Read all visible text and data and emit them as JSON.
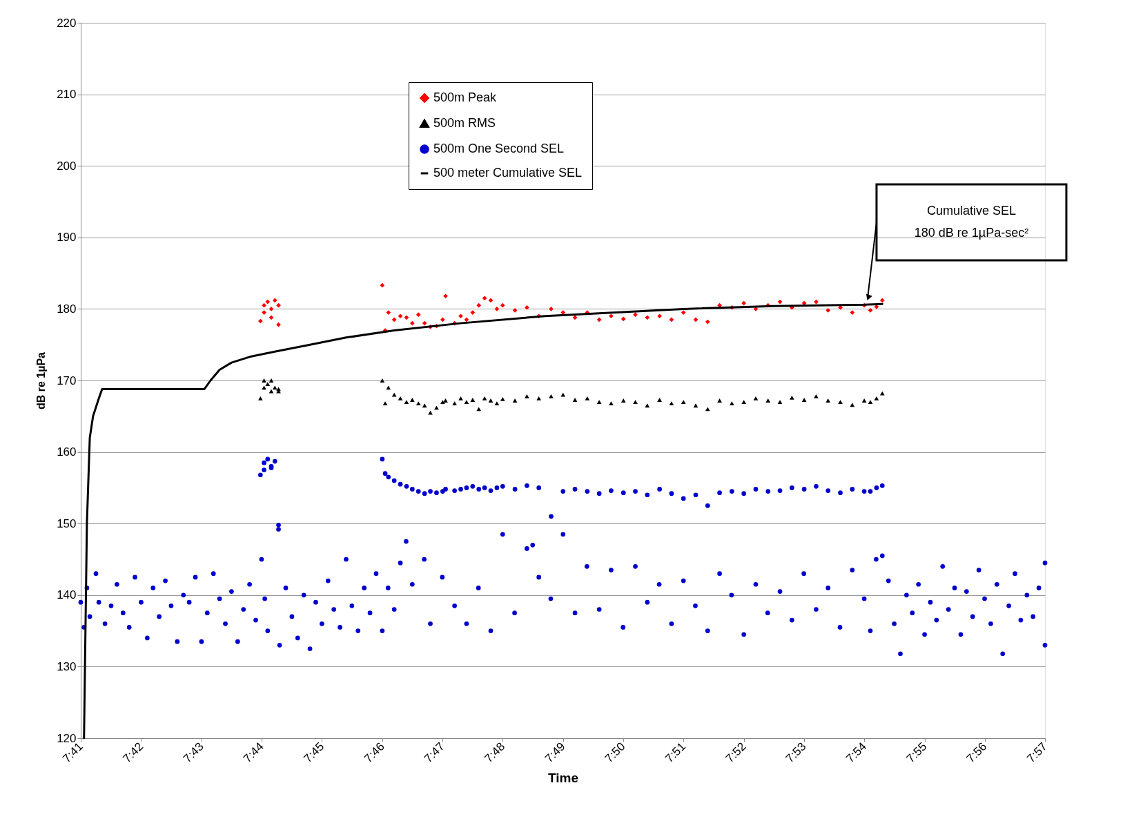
{
  "chart_data": {
    "type": "scatter",
    "xlabel": "Time",
    "ylabel": "dB re 1µPa",
    "xlim": [
      7.6833,
      7.95
    ],
    "ylim": [
      120,
      220
    ],
    "xticks": [
      {
        "value": 7.6833,
        "label": "7:41"
      },
      {
        "value": 7.7,
        "label": "7:42"
      },
      {
        "value": 7.7167,
        "label": "7:43"
      },
      {
        "value": 7.7333,
        "label": "7:44"
      },
      {
        "value": 7.75,
        "label": "7:45"
      },
      {
        "value": 7.7667,
        "label": "7:46"
      },
      {
        "value": 7.7833,
        "label": "7:47"
      },
      {
        "value": 7.8,
        "label": "7:48"
      },
      {
        "value": 7.8167,
        "label": "7:49"
      },
      {
        "value": 7.8333,
        "label": "7:50"
      },
      {
        "value": 7.85,
        "label": "7:51"
      },
      {
        "value": 7.8667,
        "label": "7:52"
      },
      {
        "value": 7.8833,
        "label": "7:53"
      },
      {
        "value": 7.9,
        "label": "7:54"
      },
      {
        "value": 7.9167,
        "label": "7:55"
      },
      {
        "value": 7.9333,
        "label": "7:56"
      },
      {
        "value": 7.95,
        "label": "7:57"
      }
    ],
    "yticks": [
      120,
      130,
      140,
      150,
      160,
      170,
      180,
      190,
      200,
      210,
      220
    ],
    "grid": "y",
    "legend": "top",
    "annotations": [
      "Cumulative SEL\n180 dB re 1µPa-sec²"
    ],
    "series": [
      {
        "name": "500m Peak",
        "marker": "diamond",
        "color": "#ff0000",
        "x": [
          7.733,
          7.734,
          7.734,
          7.735,
          7.736,
          7.736,
          7.737,
          7.738,
          7.738,
          7.7667,
          7.7675,
          7.7684,
          7.77,
          7.7717,
          7.7734,
          7.775,
          7.7767,
          7.7784,
          7.78,
          7.7817,
          7.7834,
          7.7842,
          7.7867,
          7.7884,
          7.79,
          7.7917,
          7.7934,
          7.795,
          7.7967,
          7.7984,
          7.8,
          7.8034,
          7.8067,
          7.81,
          7.8134,
          7.8167,
          7.82,
          7.8234,
          7.8267,
          7.83,
          7.8334,
          7.8367,
          7.84,
          7.8434,
          7.8467,
          7.85,
          7.8534,
          7.8567,
          7.86,
          7.8634,
          7.8667,
          7.87,
          7.8734,
          7.8767,
          7.88,
          7.8834,
          7.8867,
          7.89,
          7.8934,
          7.8967,
          7.9,
          7.9017,
          7.9034,
          7.905
        ],
        "values": [
          178.3,
          179.5,
          180.5,
          181,
          178.8,
          180,
          181.2,
          180.5,
          177.8,
          183.3,
          177,
          179.5,
          178.5,
          179,
          178.8,
          178,
          179.2,
          178,
          177.5,
          177.6,
          178.5,
          181.8,
          178,
          179,
          178.5,
          179.5,
          180.5,
          181.5,
          181.2,
          180,
          180.5,
          179.8,
          180.2,
          179,
          180,
          179.5,
          178.8,
          179.5,
          178.5,
          179,
          178.6,
          179.2,
          178.8,
          179,
          178.5,
          179.5,
          178.5,
          178.2,
          180.5,
          180.2,
          180.8,
          180,
          180.5,
          181,
          180.2,
          180.8,
          181,
          179.8,
          180.2,
          179.5,
          180.5,
          179.8,
          180.3,
          181.2
        ]
      },
      {
        "name": "500m RMS",
        "marker": "triangle",
        "color": "#000000",
        "x": [
          7.733,
          7.734,
          7.734,
          7.735,
          7.736,
          7.736,
          7.737,
          7.738,
          7.738,
          7.7667,
          7.7675,
          7.7684,
          7.77,
          7.7717,
          7.7734,
          7.775,
          7.7767,
          7.7784,
          7.78,
          7.7817,
          7.7834,
          7.7842,
          7.7867,
          7.7884,
          7.79,
          7.7917,
          7.7934,
          7.795,
          7.7967,
          7.7984,
          7.8,
          7.8034,
          7.8067,
          7.81,
          7.8134,
          7.8167,
          7.82,
          7.8234,
          7.8267,
          7.83,
          7.8334,
          7.8367,
          7.84,
          7.8434,
          7.8467,
          7.85,
          7.8534,
          7.8567,
          7.86,
          7.8634,
          7.8667,
          7.87,
          7.8734,
          7.8767,
          7.88,
          7.8834,
          7.8867,
          7.89,
          7.8934,
          7.8967,
          7.9,
          7.9017,
          7.9034,
          7.905
        ],
        "values": [
          167.5,
          169,
          170,
          169.5,
          168.5,
          170,
          169,
          168.5,
          168.8,
          170,
          166.8,
          169,
          168,
          167.5,
          167,
          167.3,
          166.8,
          166.5,
          165.5,
          166.2,
          167,
          167.2,
          166.8,
          167.5,
          167,
          167.3,
          166,
          167.5,
          167.2,
          166.8,
          167.4,
          167.2,
          167.8,
          167.5,
          167.8,
          168,
          167.3,
          167.5,
          167,
          166.8,
          167.2,
          167,
          166.5,
          167.3,
          166.8,
          167,
          166.5,
          166,
          167.2,
          166.8,
          167,
          167.5,
          167.2,
          167,
          167.6,
          167.3,
          167.8,
          167.2,
          167,
          166.6,
          167.2,
          167,
          167.5,
          168.2
        ]
      },
      {
        "name": "500m One Second SEL",
        "marker": "circle",
        "color": "#0000cc",
        "x": [
          7.733,
          7.734,
          7.734,
          7.735,
          7.736,
          7.736,
          7.737,
          7.738,
          7.738,
          7.7667,
          7.7675,
          7.7684,
          7.77,
          7.7717,
          7.7734,
          7.775,
          7.7767,
          7.7784,
          7.78,
          7.7817,
          7.7834,
          7.7842,
          7.7867,
          7.7884,
          7.79,
          7.7917,
          7.7934,
          7.795,
          7.7967,
          7.7984,
          7.8,
          7.8034,
          7.8067,
          7.81,
          7.8134,
          7.8167,
          7.82,
          7.8234,
          7.8267,
          7.83,
          7.8334,
          7.8367,
          7.84,
          7.8434,
          7.8467,
          7.85,
          7.8534,
          7.8567,
          7.86,
          7.8634,
          7.8667,
          7.87,
          7.8734,
          7.8767,
          7.88,
          7.8834,
          7.8867,
          7.89,
          7.8934,
          7.8967,
          7.9,
          7.9017,
          7.9034,
          7.905,
          7.6833,
          7.6842,
          7.685,
          7.6858,
          7.6875,
          7.6883,
          7.69,
          7.6917,
          7.6933,
          7.695,
          7.6967,
          7.6983,
          7.7,
          7.7017,
          7.7033,
          7.705,
          7.7067,
          7.7083,
          7.71,
          7.7117,
          7.7133,
          7.715,
          7.7167,
          7.7183,
          7.72,
          7.7217,
          7.7233,
          7.725,
          7.7267,
          7.7283,
          7.73,
          7.7317,
          7.7333,
          7.7342,
          7.735,
          7.7383,
          7.74,
          7.7417,
          7.7433,
          7.745,
          7.7467,
          7.7483,
          7.75,
          7.7517,
          7.7533,
          7.755,
          7.7567,
          7.7583,
          7.76,
          7.7617,
          7.7633,
          7.765,
          7.7667,
          7.7683,
          7.77,
          7.7717,
          7.7733,
          7.775,
          7.7783,
          7.78,
          7.7833,
          7.7867,
          7.79,
          7.7933,
          7.7967,
          7.8,
          7.8033,
          7.8067,
          7.8083,
          7.81,
          7.8133,
          7.8167,
          7.82,
          7.8233,
          7.8267,
          7.83,
          7.8333,
          7.8367,
          7.84,
          7.8433,
          7.8467,
          7.85,
          7.8533,
          7.8567,
          7.86,
          7.8633,
          7.8667,
          7.87,
          7.8733,
          7.8767,
          7.88,
          7.8833,
          7.8867,
          7.89,
          7.8933,
          7.8967,
          7.9,
          7.9017,
          7.9033,
          7.905,
          7.9067,
          7.9083,
          7.91,
          7.9117,
          7.9133,
          7.915,
          7.9167,
          7.9183,
          7.92,
          7.9217,
          7.9233,
          7.925,
          7.9267,
          7.9283,
          7.93,
          7.9317,
          7.9333,
          7.935,
          7.9367,
          7.9383,
          7.94,
          7.9417,
          7.9433,
          7.945,
          7.9467,
          7.9483,
          7.95,
          7.95
        ],
        "values": [
          156.8,
          157.5,
          158.5,
          159,
          158,
          157.8,
          158.7,
          149.8,
          149.2,
          159,
          157,
          156.5,
          156,
          155.5,
          155.2,
          154.8,
          154.5,
          154.2,
          154.5,
          154.3,
          154.5,
          154.8,
          154.6,
          154.8,
          155,
          155.2,
          154.8,
          155,
          154.6,
          155,
          155.2,
          154.8,
          155.3,
          155,
          151,
          154.5,
          154.8,
          154.5,
          154.2,
          154.6,
          154.3,
          154.5,
          154,
          154.8,
          154.2,
          153.5,
          154,
          152.5,
          154.3,
          154.5,
          154.2,
          154.8,
          154.5,
          154.6,
          155,
          154.8,
          155.2,
          154.6,
          154.3,
          154.8,
          154.5,
          154.5,
          155,
          155.3,
          139,
          135.5,
          141,
          137,
          143,
          139,
          136,
          138.5,
          141.5,
          137.5,
          135.5,
          142.5,
          139,
          134,
          141,
          137,
          142,
          138.5,
          133.5,
          140,
          139,
          142.5,
          133.5,
          137.5,
          143,
          139.5,
          136,
          140.5,
          133.5,
          138,
          141.5,
          136.5,
          145,
          139.5,
          135,
          133,
          141,
          137,
          134,
          140,
          132.5,
          139,
          136,
          142,
          138,
          135.5,
          145,
          138.5,
          135,
          141,
          137.5,
          143,
          135,
          141,
          138,
          144.5,
          147.5,
          141.5,
          145,
          136,
          142.5,
          138.5,
          136,
          141,
          135,
          148.5,
          137.5,
          146.5,
          147,
          142.5,
          139.5,
          148.5,
          137.5,
          144,
          138,
          143.5,
          135.5,
          144,
          139,
          141.5,
          136,
          142,
          138.5,
          135,
          143,
          140,
          134.5,
          141.5,
          137.5,
          140.5,
          136.5,
          143,
          138,
          141,
          135.5,
          143.5,
          139.5,
          135,
          145,
          145.5,
          142,
          136,
          131.8,
          140,
          137.5,
          141.5,
          134.5,
          139,
          136.5,
          144,
          138,
          141,
          134.5,
          140.5,
          137,
          143.5,
          139.5,
          136,
          141.5,
          131.8,
          138.5,
          143,
          136.5,
          140,
          137,
          141,
          133,
          144.5
        ]
      },
      {
        "name": "500 meter Cumulative SEL",
        "type": "line",
        "marker": "none",
        "color": "#000000",
        "x": [
          7.6842,
          7.685,
          7.6858,
          7.6867,
          7.6883,
          7.6892,
          7.7175,
          7.7192,
          7.7217,
          7.725,
          7.73,
          7.7367,
          7.7467,
          7.7567,
          7.77,
          7.7883,
          7.8117,
          7.85,
          7.875,
          7.9,
          7.905
        ],
        "values": [
          120,
          150,
          162,
          165,
          167.5,
          168.8,
          168.8,
          170,
          171.5,
          172.5,
          173.3,
          174,
          175,
          176,
          177,
          178,
          179,
          180,
          180.4,
          180.6,
          180.7
        ]
      }
    ]
  }
}
